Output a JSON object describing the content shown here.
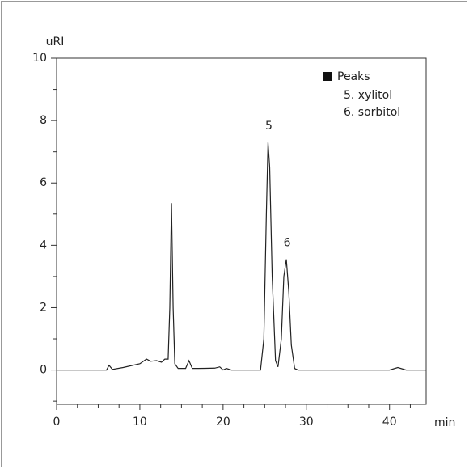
{
  "chart_data": {
    "type": "line",
    "y_label": "uRI",
    "x_label": "min",
    "xlim": [
      0,
      44.4
    ],
    "ylim": [
      -1.1,
      10
    ],
    "xticks": [
      0,
      10,
      20,
      30,
      40
    ],
    "x_minor_ticks": [
      2.5,
      5,
      7.5,
      12.5,
      15,
      17.5,
      22.5,
      25,
      27.5,
      32.5,
      35,
      37.5,
      42.5
    ],
    "yticks": [
      0,
      2,
      4,
      6,
      8,
      10
    ],
    "y_minor_ticks": [
      -1,
      1,
      3,
      5,
      7,
      9
    ],
    "color": "#222222",
    "x": [
      0,
      6,
      6.3,
      6.7,
      8,
      10,
      10.8,
      11.3,
      12,
      12.6,
      13,
      13.4,
      13.6,
      13.8,
      14,
      14.2,
      14.6,
      15.5,
      15.9,
      16.3,
      17,
      19,
      19.6,
      20,
      20.4,
      21,
      24.5,
      24.9,
      25.2,
      25.4,
      25.6,
      25.9,
      26.3,
      26.6,
      27,
      27.3,
      27.6,
      27.9,
      28.2,
      28.6,
      29,
      40,
      41,
      42,
      44.4
    ],
    "values": [
      0,
      0,
      0.15,
      0.02,
      0.08,
      0.2,
      0.35,
      0.28,
      0.3,
      0.25,
      0.35,
      0.35,
      2,
      5.35,
      2,
      0.2,
      0.05,
      0.05,
      0.3,
      0.05,
      0.05,
      0.06,
      0.1,
      0,
      0.05,
      0,
      0,
      1,
      5,
      7.3,
      6.5,
      3,
      0.3,
      0.1,
      1,
      3,
      3.55,
      2.5,
      0.8,
      0.05,
      0,
      0,
      0.08,
      0,
      0
    ],
    "annotations": [
      {
        "text": "5",
        "x": 25.4,
        "y": 7.3
      },
      {
        "text": "6",
        "x": 27.6,
        "y": 3.55
      }
    ],
    "legend": {
      "title": "Peaks",
      "items": [
        "5. xylitol",
        "6. sorbitol"
      ]
    }
  }
}
